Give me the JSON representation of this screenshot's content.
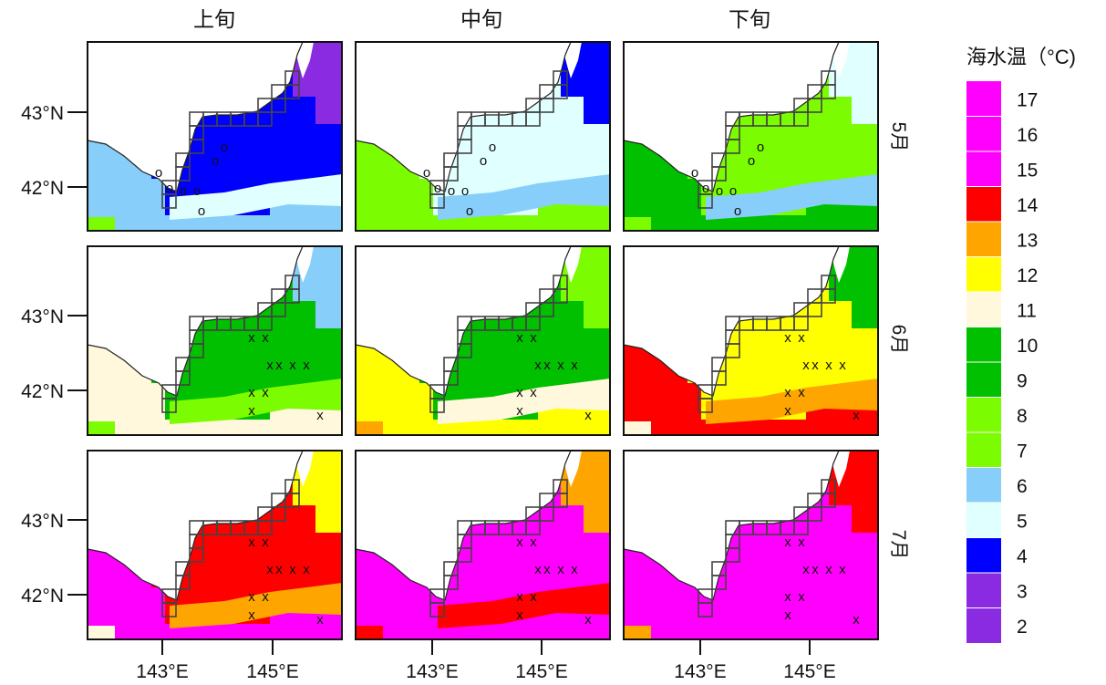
{
  "columns": [
    "上旬",
    "中旬",
    "下旬"
  ],
  "rows": [
    "5月",
    "6月",
    "7月"
  ],
  "lat_ticks": [
    "43°N",
    "42°N"
  ],
  "lon_ticks": [
    "143°E",
    "145°E"
  ],
  "legend": {
    "title": "海水温（°C)",
    "levels": [
      {
        "label": "17",
        "color": "#ff00ff"
      },
      {
        "label": "16",
        "color": "#ff00ff"
      },
      {
        "label": "15",
        "color": "#ff00ff"
      },
      {
        "label": "14",
        "color": "#ff0000"
      },
      {
        "label": "13",
        "color": "#ffa500"
      },
      {
        "label": "12",
        "color": "#ffff00"
      },
      {
        "label": "11",
        "color": "#fff8dc"
      },
      {
        "label": "10",
        "color": "#00c000"
      },
      {
        "label": "9",
        "color": "#00c000"
      },
      {
        "label": "8",
        "color": "#7cfc00"
      },
      {
        "label": "7",
        "color": "#7cfc00"
      },
      {
        "label": "6",
        "color": "#87cefa"
      },
      {
        "label": "5",
        "color": "#e0ffff"
      },
      {
        "label": "4",
        "color": "#0000ff"
      },
      {
        "label": "3",
        "color": "#8a2be2"
      },
      {
        "label": "2",
        "color": "#8a2be2"
      }
    ]
  },
  "markers": {
    "circle": "o",
    "cross": "x"
  },
  "panels": [
    {
      "row": 0,
      "col": 0,
      "marker": "o",
      "base": "#0000ff",
      "south": "#87cefa",
      "shelf": "#e0ffff",
      "accent": "#8a2be2",
      "land_edge": "#7cfc00"
    },
    {
      "row": 0,
      "col": 1,
      "marker": "o",
      "base": "#e0ffff",
      "south": "#7cfc00",
      "shelf": "#87cefa",
      "accent": "#0000ff",
      "land_edge": "#7cfc00"
    },
    {
      "row": 0,
      "col": 2,
      "marker": "o",
      "base": "#7cfc00",
      "south": "#00c000",
      "shelf": "#87cefa",
      "accent": "#e0ffff",
      "land_edge": "#7cfc00"
    },
    {
      "row": 1,
      "col": 0,
      "marker": "x",
      "base": "#00c000",
      "south": "#fff8dc",
      "shelf": "#7cfc00",
      "accent": "#87cefa",
      "land_edge": "#7cfc00"
    },
    {
      "row": 1,
      "col": 1,
      "marker": "x",
      "base": "#00c000",
      "south": "#ffff00",
      "shelf": "#fff8dc",
      "accent": "#7cfc00",
      "land_edge": "#ffa500"
    },
    {
      "row": 1,
      "col": 2,
      "marker": "x",
      "base": "#ffff00",
      "south": "#ff0000",
      "shelf": "#ffa500",
      "accent": "#00c000",
      "land_edge": "#fff8dc"
    },
    {
      "row": 2,
      "col": 0,
      "marker": "x",
      "base": "#ff0000",
      "south": "#ff00ff",
      "shelf": "#ffa500",
      "accent": "#ffff00",
      "land_edge": "#fff8dc"
    },
    {
      "row": 2,
      "col": 1,
      "marker": "x",
      "base": "#ff00ff",
      "south": "#ff00ff",
      "shelf": "#ff0000",
      "accent": "#ffa500",
      "land_edge": "#ff0000"
    },
    {
      "row": 2,
      "col": 2,
      "marker": "x",
      "base": "#ff00ff",
      "south": "#ff00ff",
      "shelf": "#ff00ff",
      "accent": "#ff0000",
      "land_edge": "#ffa500"
    }
  ]
}
